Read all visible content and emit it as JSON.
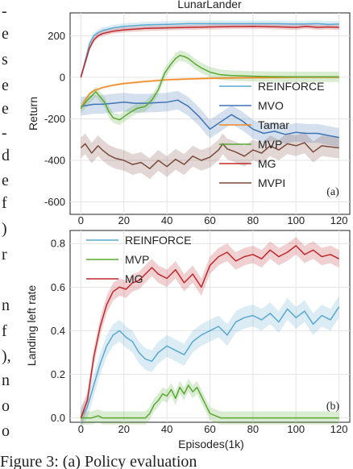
{
  "margin_text": {
    "left_letters": [
      "-",
      "e",
      "s",
      "e",
      "e",
      "-",
      "d",
      "e",
      "f",
      ")",
      "r",
      "",
      "n",
      "f",
      "),",
      "n",
      "o",
      "o"
    ],
    "caption": "Figure 3: (a) Policy evaluation"
  },
  "colors": {
    "REINFORCE": "#5aa8d0",
    "MVO": "#3f74b8",
    "Tamar": "#f08a24",
    "MVP": "#58a832",
    "MG": "#c0282c",
    "MVPI": "#7a4a3a",
    "grid": "#e4e4e4",
    "axis": "#222222"
  },
  "chart_data": [
    {
      "type": "line",
      "title": "LunarLander",
      "xlabel": "",
      "ylabel": "Return",
      "xlim": [
        -5,
        125
      ],
      "ylim": [
        -660,
        310
      ],
      "xticks": [
        0,
        20,
        40,
        60,
        80,
        100,
        120
      ],
      "yticks": [
        -600,
        -400,
        -200,
        0,
        200
      ],
      "grid": true,
      "legend": "inside-right",
      "panel_label": "(a)",
      "series": [
        {
          "name": "REINFORCE",
          "x": [
            0,
            2,
            4,
            6,
            8,
            10,
            15,
            20,
            30,
            40,
            50,
            60,
            70,
            80,
            90,
            100,
            110,
            115,
            120
          ],
          "y": [
            0,
            80,
            160,
            200,
            215,
            225,
            238,
            245,
            252,
            255,
            258,
            258,
            258,
            258,
            258,
            256,
            258,
            255,
            256
          ],
          "band": 15
        },
        {
          "name": "MVO",
          "x": [
            0,
            3,
            6,
            10,
            15,
            20,
            25,
            30,
            40,
            45,
            50,
            55,
            60,
            65,
            70,
            75,
            80,
            85,
            90,
            95,
            100,
            105,
            110,
            115,
            120
          ],
          "y": [
            -140,
            -135,
            -130,
            -130,
            -125,
            -120,
            -125,
            -125,
            -120,
            -110,
            -140,
            -190,
            -250,
            -215,
            -180,
            -210,
            -250,
            -270,
            -260,
            -275,
            -265,
            -270,
            -270,
            -280,
            -290
          ],
          "band": 45
        },
        {
          "name": "Tamar",
          "x": [
            0,
            2,
            4,
            6,
            10,
            15,
            20,
            30,
            40,
            50,
            60,
            70,
            80,
            90,
            100,
            110,
            120
          ],
          "y": [
            -150,
            -110,
            -80,
            -65,
            -50,
            -38,
            -30,
            -20,
            -12,
            -8,
            -5,
            -3,
            -2,
            -1,
            0,
            0,
            0
          ],
          "band": 6
        },
        {
          "name": "MVP",
          "x": [
            0,
            3,
            5,
            7,
            9,
            11,
            13,
            15,
            18,
            22,
            26,
            30,
            33,
            36,
            39,
            42,
            44,
            46,
            48,
            50,
            53,
            56,
            60,
            65,
            70,
            80,
            90,
            100,
            110,
            120
          ],
          "y": [
            -150,
            -110,
            -90,
            -70,
            -95,
            -120,
            -165,
            -195,
            -205,
            -175,
            -150,
            -140,
            -110,
            -60,
            20,
            65,
            90,
            105,
            100,
            90,
            65,
            45,
            25,
            12,
            8,
            5,
            3,
            2,
            2,
            2
          ],
          "band": 25
        },
        {
          "name": "MG",
          "x": [
            0,
            2,
            4,
            6,
            8,
            10,
            15,
            20,
            30,
            40,
            50,
            60,
            70,
            80,
            90,
            100,
            105,
            110,
            115,
            120
          ],
          "y": [
            0,
            70,
            140,
            180,
            200,
            210,
            222,
            228,
            235,
            238,
            240,
            242,
            244,
            245,
            243,
            240,
            245,
            240,
            242,
            240
          ],
          "band": 12
        },
        {
          "name": "MVPI",
          "x": [
            0,
            2,
            5,
            8,
            10,
            13,
            16,
            20,
            24,
            28,
            32,
            36,
            40,
            44,
            48,
            52,
            56,
            60,
            64,
            66,
            68,
            72,
            76,
            80,
            84,
            88,
            92,
            96,
            100,
            104,
            108,
            112,
            116,
            120
          ],
          "y": [
            -340,
            -320,
            -365,
            -330,
            -350,
            -375,
            -390,
            -400,
            -420,
            -410,
            -440,
            -400,
            -430,
            -395,
            -420,
            -380,
            -400,
            -385,
            -350,
            -320,
            -345,
            -360,
            -380,
            -350,
            -365,
            -330,
            -350,
            -320,
            -330,
            -315,
            -360,
            -330,
            -335,
            -340
          ],
          "band": 50
        }
      ]
    },
    {
      "type": "line",
      "title": "",
      "xlabel": "Episodes(1k)",
      "ylabel": "Landing left rate",
      "xlim": [
        -5,
        125
      ],
      "ylim": [
        -0.02,
        0.86
      ],
      "xticks": [
        0,
        20,
        40,
        60,
        80,
        100,
        120
      ],
      "yticks": [
        0.0,
        0.2,
        0.4,
        0.6,
        0.8
      ],
      "ytick_labels": [
        "0.0",
        "0.2",
        "0.4",
        "0.6",
        "0.8"
      ],
      "grid": true,
      "legend": "top-left",
      "panel_label": "(b)",
      "series": [
        {
          "name": "REINFORCE",
          "x": [
            0,
            3,
            6,
            9,
            12,
            15,
            18,
            21,
            24,
            27,
            30,
            33,
            36,
            40,
            44,
            48,
            52,
            56,
            60,
            64,
            68,
            72,
            76,
            80,
            84,
            88,
            92,
            96,
            100,
            104,
            108,
            112,
            116,
            120
          ],
          "y": [
            0,
            0.05,
            0.15,
            0.25,
            0.33,
            0.38,
            0.4,
            0.37,
            0.35,
            0.3,
            0.27,
            0.26,
            0.3,
            0.33,
            0.31,
            0.29,
            0.35,
            0.38,
            0.4,
            0.42,
            0.38,
            0.44,
            0.46,
            0.47,
            0.45,
            0.48,
            0.44,
            0.5,
            0.46,
            0.49,
            0.43,
            0.47,
            0.45,
            0.51
          ],
          "band": 0.05
        },
        {
          "name": "MVP",
          "x": [
            0,
            5,
            8,
            10,
            15,
            20,
            25,
            30,
            32,
            34,
            36,
            38,
            40,
            42,
            44,
            46,
            48,
            50,
            52,
            54,
            56,
            58,
            60,
            65,
            70,
            80,
            90,
            100,
            110,
            120
          ],
          "y": [
            0,
            0,
            0.01,
            0,
            0,
            0,
            0,
            0,
            0.02,
            0.06,
            0.08,
            0.11,
            0.1,
            0.13,
            0.09,
            0.14,
            0.11,
            0.15,
            0.12,
            0.14,
            0.1,
            0.06,
            0.02,
            0,
            0,
            0,
            0,
            0,
            0,
            0
          ],
          "band": 0.03
        },
        {
          "name": "MG",
          "x": [
            0,
            3,
            6,
            9,
            12,
            15,
            18,
            21,
            24,
            27,
            30,
            33,
            36,
            40,
            44,
            48,
            52,
            56,
            60,
            64,
            68,
            72,
            76,
            80,
            84,
            88,
            92,
            96,
            100,
            104,
            108,
            112,
            116,
            120
          ],
          "y": [
            0,
            0.08,
            0.28,
            0.42,
            0.52,
            0.58,
            0.6,
            0.59,
            0.62,
            0.63,
            0.66,
            0.69,
            0.66,
            0.64,
            0.68,
            0.62,
            0.66,
            0.6,
            0.7,
            0.74,
            0.76,
            0.72,
            0.74,
            0.75,
            0.73,
            0.77,
            0.74,
            0.76,
            0.79,
            0.75,
            0.77,
            0.74,
            0.75,
            0.73
          ],
          "band": 0.04
        }
      ]
    }
  ]
}
